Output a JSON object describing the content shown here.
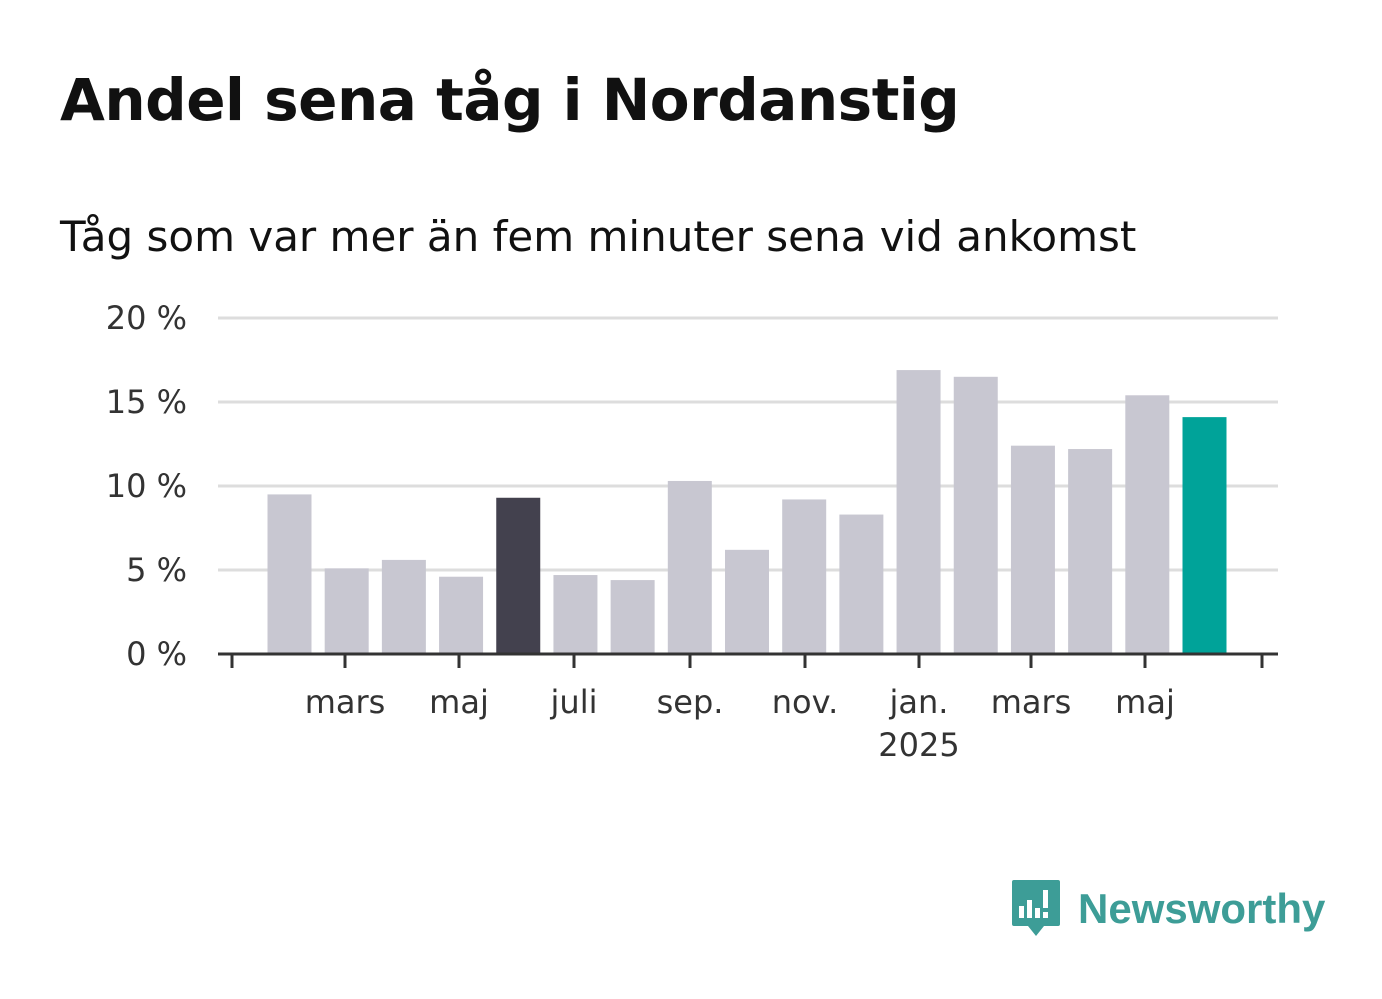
{
  "chart_data": {
    "type": "bar",
    "title": "Andel sena tåg i Nordanstig",
    "subtitle": "Tåg som var mer än fem minuter sena vid ankomst",
    "ylim": [
      0,
      20
    ],
    "y_ticks": [
      0,
      5,
      10,
      15,
      20
    ],
    "y_tick_labels": [
      "0 %",
      "5 %",
      "10 %",
      "15 %",
      "20 %"
    ],
    "x_tick_labels": [
      "mars",
      "maj",
      "juli",
      "sep.",
      "nov.",
      "jan.",
      "mars",
      "maj"
    ],
    "x_year_label": "2025",
    "grid": true,
    "values": [
      9.5,
      5.1,
      5.6,
      4.6,
      9.3,
      4.7,
      4.4,
      10.3,
      6.2,
      9.2,
      8.3,
      16.9,
      16.5,
      12.4,
      12.2,
      15.4,
      14.1
    ],
    "bar_colors": [
      "#c8c7d1",
      "#c8c7d1",
      "#c8c7d1",
      "#c8c7d1",
      "#43414e",
      "#c8c7d1",
      "#c8c7d1",
      "#c8c7d1",
      "#c8c7d1",
      "#c8c7d1",
      "#c8c7d1",
      "#c8c7d1",
      "#c8c7d1",
      "#c8c7d1",
      "#c8c7d1",
      "#c8c7d1",
      "#00a399"
    ]
  },
  "logo": {
    "text": "Newsworthy",
    "color": "#3d9d97",
    "icon": "newsworthy-chart-bubble-icon"
  }
}
